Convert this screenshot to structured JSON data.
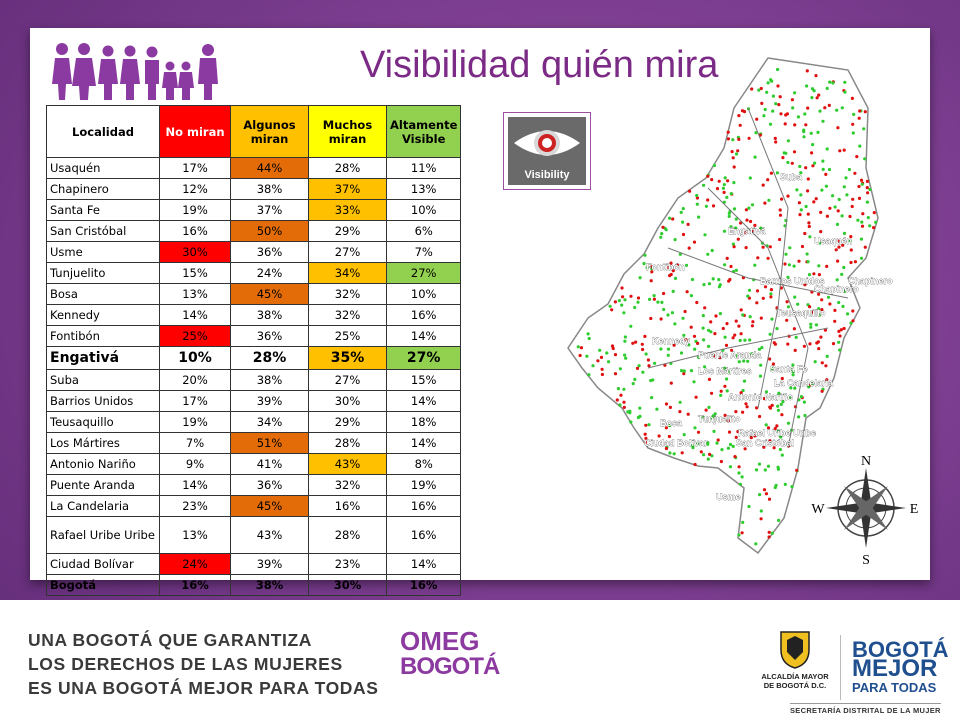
{
  "title": "Visibilidad quién mira",
  "table": {
    "headers": [
      "Localidad",
      "No miran",
      "Algunos miran",
      "Muchos miran",
      "Altamente Visible"
    ],
    "header_colors": [
      "#ffffff",
      "#ff0000",
      "#ffc000",
      "#ffff00",
      "#92d050"
    ],
    "rows": [
      {
        "cells": [
          "Usaquén",
          "17%",
          "44%",
          "28%",
          "11%"
        ],
        "hl": [
          null,
          null,
          "#e36c09",
          null,
          null
        ]
      },
      {
        "cells": [
          "Chapinero",
          "12%",
          "38%",
          "37%",
          "13%"
        ],
        "hl": [
          null,
          null,
          null,
          "#ffc000",
          null
        ]
      },
      {
        "cells": [
          "Santa Fe",
          "19%",
          "37%",
          "33%",
          "10%"
        ],
        "hl": [
          null,
          null,
          null,
          "#ffc000",
          null
        ]
      },
      {
        "cells": [
          "San Cristóbal",
          "16%",
          "50%",
          "29%",
          "6%"
        ],
        "hl": [
          null,
          null,
          "#e36c09",
          null,
          null
        ]
      },
      {
        "cells": [
          "Usme",
          "30%",
          "36%",
          "27%",
          "7%"
        ],
        "hl": [
          null,
          "#ff0000",
          null,
          null,
          null
        ]
      },
      {
        "cells": [
          "Tunjuelito",
          "15%",
          "24%",
          "34%",
          "27%"
        ],
        "hl": [
          null,
          null,
          null,
          "#ffc000",
          "#92d050"
        ]
      },
      {
        "cells": [
          "Bosa",
          "13%",
          "45%",
          "32%",
          "10%"
        ],
        "hl": [
          null,
          null,
          "#e36c09",
          null,
          null
        ]
      },
      {
        "cells": [
          "Kennedy",
          "14%",
          "38%",
          "32%",
          "16%"
        ],
        "hl": [
          null,
          null,
          null,
          null,
          null
        ]
      },
      {
        "cells": [
          "Fontibón",
          "25%",
          "36%",
          "25%",
          "14%"
        ],
        "hl": [
          null,
          "#ff0000",
          null,
          null,
          null
        ]
      },
      {
        "cells": [
          "Engativá",
          "10%",
          "28%",
          "35%",
          "27%"
        ],
        "hl": [
          null,
          null,
          null,
          "#ffc000",
          "#92d050"
        ],
        "big": true
      },
      {
        "cells": [
          "Suba",
          "20%",
          "38%",
          "27%",
          "15%"
        ],
        "hl": [
          null,
          null,
          null,
          null,
          null
        ]
      },
      {
        "cells": [
          "Barrios Unidos",
          "17%",
          "39%",
          "30%",
          "14%"
        ],
        "hl": [
          null,
          null,
          null,
          null,
          null
        ]
      },
      {
        "cells": [
          "Teusaquillo",
          "19%",
          "34%",
          "29%",
          "18%"
        ],
        "hl": [
          null,
          null,
          null,
          null,
          null
        ]
      },
      {
        "cells": [
          "Los Mártires",
          "7%",
          "51%",
          "28%",
          "14%"
        ],
        "hl": [
          null,
          null,
          "#e36c09",
          null,
          null
        ]
      },
      {
        "cells": [
          "Antonio Nariño",
          "9%",
          "41%",
          "43%",
          "8%"
        ],
        "hl": [
          null,
          null,
          null,
          "#ffc000",
          null
        ]
      },
      {
        "cells": [
          "Puente Aranda",
          "14%",
          "36%",
          "32%",
          "19%"
        ],
        "hl": [
          null,
          null,
          null,
          null,
          null
        ]
      },
      {
        "cells": [
          "La Candelaria",
          "23%",
          "45%",
          "16%",
          "16%"
        ],
        "hl": [
          null,
          null,
          "#e36c09",
          null,
          null
        ]
      },
      {
        "cells": [
          "Rafael Uribe Uribe",
          "13%",
          "43%",
          "28%",
          "16%"
        ],
        "hl": [
          null,
          null,
          null,
          null,
          null
        ],
        "tall": true
      },
      {
        "cells": [
          "Ciudad Bolívar",
          "24%",
          "39%",
          "23%",
          "14%"
        ],
        "hl": [
          null,
          "#ff0000",
          null,
          null,
          null
        ]
      },
      {
        "cells": [
          "Bogotá",
          "16%",
          "38%",
          "30%",
          "16%"
        ],
        "hl": [
          null,
          null,
          null,
          null,
          null
        ],
        "bold": true
      }
    ]
  },
  "visibility_icon": {
    "label": "Visibility",
    "icon": "eye-icon"
  },
  "map": {
    "labels": [
      "Suba",
      "Engativá",
      "Usaquén",
      "Fontibón",
      "Barrios Unidos",
      "Chapinero",
      "Chapinero",
      "Teusaquillo",
      "Kennedy",
      "Puente Aranda",
      "Los Mártires",
      "Santa Fe",
      "La Candelaria",
      "Antonio Nariño",
      "Bosa",
      "Tunjuelito",
      "Rafael Uribe Uribe",
      "Ciudad Bolívar",
      "San Cristóbal",
      "Usme"
    ],
    "compass": {
      "n": "N",
      "s": "S",
      "e": "E",
      "w": "W"
    },
    "colors": {
      "green": "#2ecc2e",
      "red": "#e01010",
      "line": "#777777"
    }
  },
  "footer": {
    "slogan": [
      "UNA BOGOTÁ QUE GARANTIZA",
      "LOS DERECHOS DE LAS MUJERES",
      "ES UNA BOGOTÁ MEJOR PARA TODAS"
    ],
    "omeg": [
      "OMEG",
      "BOGOTÁ"
    ],
    "alcaldia": [
      "ALCALDÍA MAYOR",
      "DE BOGOTÁ D.C."
    ],
    "mejor": [
      "BOGOTÁ",
      "MEJOR",
      "PARA TODAS"
    ],
    "secretaria": "SECRETARÍA DISTRITAL DE LA MUJER"
  }
}
